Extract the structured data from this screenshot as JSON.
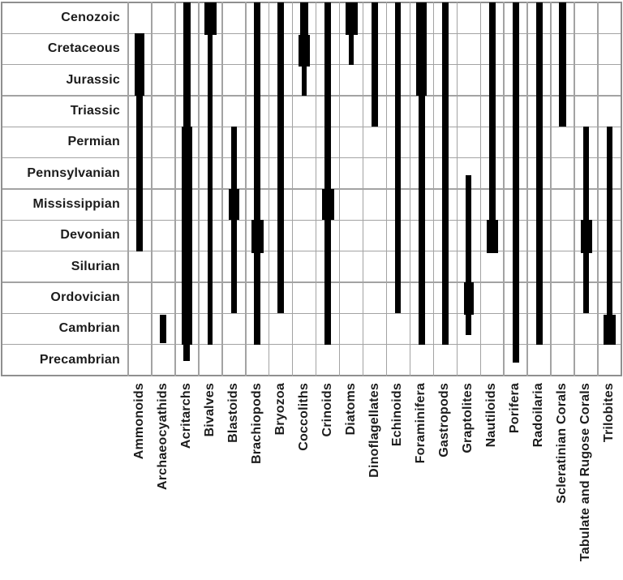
{
  "colors": {
    "background": "#ffffff",
    "bar": "#000000",
    "grid_inner": "#a3a3a3",
    "grid_border": "#8f8f8f",
    "text": "#1c1c1c"
  },
  "chart_data": {
    "type": "table",
    "subtype": "stratigraphic-range-bar-chart",
    "title": "",
    "orientation": "rows = geologic periods (youngest at top), columns = fossil taxa; black vertical bars show each taxon's time range, wider bar sections = greater abundance",
    "legend_position": "none",
    "grid": "on",
    "periods": [
      "Cenozoic",
      "Cretaceous",
      "Jurassic",
      "Triassic",
      "Permian",
      "Pennsylvanian",
      "Mississippian",
      "Devonian",
      "Silurian",
      "Ordovician",
      "Cambrian",
      "Precambrian"
    ],
    "unit_note": "segment from/to are in row units: 0 = top of Cenozoic row, 12 = bottom of Precambrian row; width = bar thickness in screen px",
    "taxa": [
      {
        "name": "Ammonoids",
        "range": "Cretaceous to Devonian",
        "segments": [
          {
            "from": 1,
            "to": 3,
            "width": 12
          },
          {
            "from": 3,
            "to": 8,
            "width": 8
          }
        ]
      },
      {
        "name": "Archaeocyathids",
        "range": "Cambrian",
        "segments": [
          {
            "from": 10.05,
            "to": 10.95,
            "width": 8
          }
        ]
      },
      {
        "name": "Acritarchs",
        "range": "Cenozoic to Precambrian",
        "segments": [
          {
            "from": 0,
            "to": 4,
            "width": 9
          },
          {
            "from": 4,
            "to": 11,
            "width": 13
          },
          {
            "from": 11,
            "to": 11.53,
            "width": 8
          }
        ]
      },
      {
        "name": "Bivalves",
        "range": "Cenozoic to Cambrian",
        "segments": [
          {
            "from": 0,
            "to": 1.05,
            "width": 15
          },
          {
            "from": 1.05,
            "to": 11,
            "width": 6
          }
        ]
      },
      {
        "name": "Blastoids",
        "range": "Permian to Ordovician",
        "segments": [
          {
            "from": 4,
            "to": 6,
            "width": 7
          },
          {
            "from": 6,
            "to": 7,
            "width": 13
          },
          {
            "from": 7,
            "to": 10,
            "width": 7
          }
        ]
      },
      {
        "name": "Brachiopods",
        "range": "Cenozoic to Cambrian",
        "segments": [
          {
            "from": 0,
            "to": 7,
            "width": 8
          },
          {
            "from": 7,
            "to": 8.07,
            "width": 15
          },
          {
            "from": 8.07,
            "to": 11,
            "width": 8
          }
        ]
      },
      {
        "name": "Bryozoa",
        "range": "Cenozoic to Ordovician",
        "segments": [
          {
            "from": 0,
            "to": 10,
            "width": 8
          }
        ]
      },
      {
        "name": "Coccoliths",
        "range": "Cenozoic to Jurassic",
        "segments": [
          {
            "from": 0,
            "to": 1.05,
            "width": 10
          },
          {
            "from": 1.05,
            "to": 2.05,
            "width": 14
          },
          {
            "from": 2.05,
            "to": 3,
            "width": 6
          }
        ]
      },
      {
        "name": "Crinoids",
        "range": "Cenozoic to Cambrian",
        "segments": [
          {
            "from": 0,
            "to": 6,
            "width": 8
          },
          {
            "from": 6,
            "to": 7,
            "width": 15
          },
          {
            "from": 7,
            "to": 11,
            "width": 8
          }
        ]
      },
      {
        "name": "Diatoms",
        "range": "Cenozoic to Cretaceous",
        "segments": [
          {
            "from": 0,
            "to": 1.05,
            "width": 15
          },
          {
            "from": 1.05,
            "to": 2,
            "width": 6
          }
        ]
      },
      {
        "name": "Dinoflagellates",
        "range": "Cenozoic to Triassic",
        "segments": [
          {
            "from": 0,
            "to": 4,
            "width": 8
          }
        ]
      },
      {
        "name": "Echinoids",
        "range": "Cenozoic to Ordovician",
        "segments": [
          {
            "from": 0,
            "to": 10,
            "width": 7
          }
        ]
      },
      {
        "name": "Foraminifera",
        "range": "Cenozoic to Cambrian",
        "segments": [
          {
            "from": 0,
            "to": 3,
            "width": 13
          },
          {
            "from": 3,
            "to": 11,
            "width": 8
          }
        ]
      },
      {
        "name": "Gastropods",
        "range": "Cenozoic to Cambrian",
        "segments": [
          {
            "from": 0,
            "to": 11,
            "width": 8
          }
        ]
      },
      {
        "name": "Graptolites",
        "range": "Pennsylvanian to Cambrian",
        "segments": [
          {
            "from": 5.55,
            "to": 9,
            "width": 7
          },
          {
            "from": 9,
            "to": 10.05,
            "width": 12
          },
          {
            "from": 10.05,
            "to": 10.7,
            "width": 7
          }
        ]
      },
      {
        "name": "Nautiloids",
        "range": "Cenozoic to Devonian",
        "segments": [
          {
            "from": 0,
            "to": 7,
            "width": 8
          },
          {
            "from": 7,
            "to": 8.07,
            "width": 14
          }
        ]
      },
      {
        "name": "Porifera",
        "range": "Cenozoic to Precambrian",
        "segments": [
          {
            "from": 0,
            "to": 11.57,
            "width": 8
          }
        ]
      },
      {
        "name": "Radoilaria",
        "range": "Cenozoic to Cambrian",
        "segments": [
          {
            "from": 0,
            "to": 11,
            "width": 8
          }
        ]
      },
      {
        "name": "Scleratinian Corals",
        "range": "Cenozoic to Triassic",
        "segments": [
          {
            "from": 0,
            "to": 4,
            "width": 9
          }
        ]
      },
      {
        "name": "Tabulate and Rugose Corals",
        "range": "Permian to Ordovician",
        "segments": [
          {
            "from": 4,
            "to": 7,
            "width": 7
          },
          {
            "from": 7,
            "to": 8.07,
            "width": 14
          },
          {
            "from": 8.07,
            "to": 10,
            "width": 7
          }
        ]
      },
      {
        "name": "Trilobites",
        "range": "Permian to Cambrian",
        "segments": [
          {
            "from": 4,
            "to": 10.05,
            "width": 7
          },
          {
            "from": 10.05,
            "to": 11,
            "width": 15
          }
        ]
      }
    ]
  }
}
